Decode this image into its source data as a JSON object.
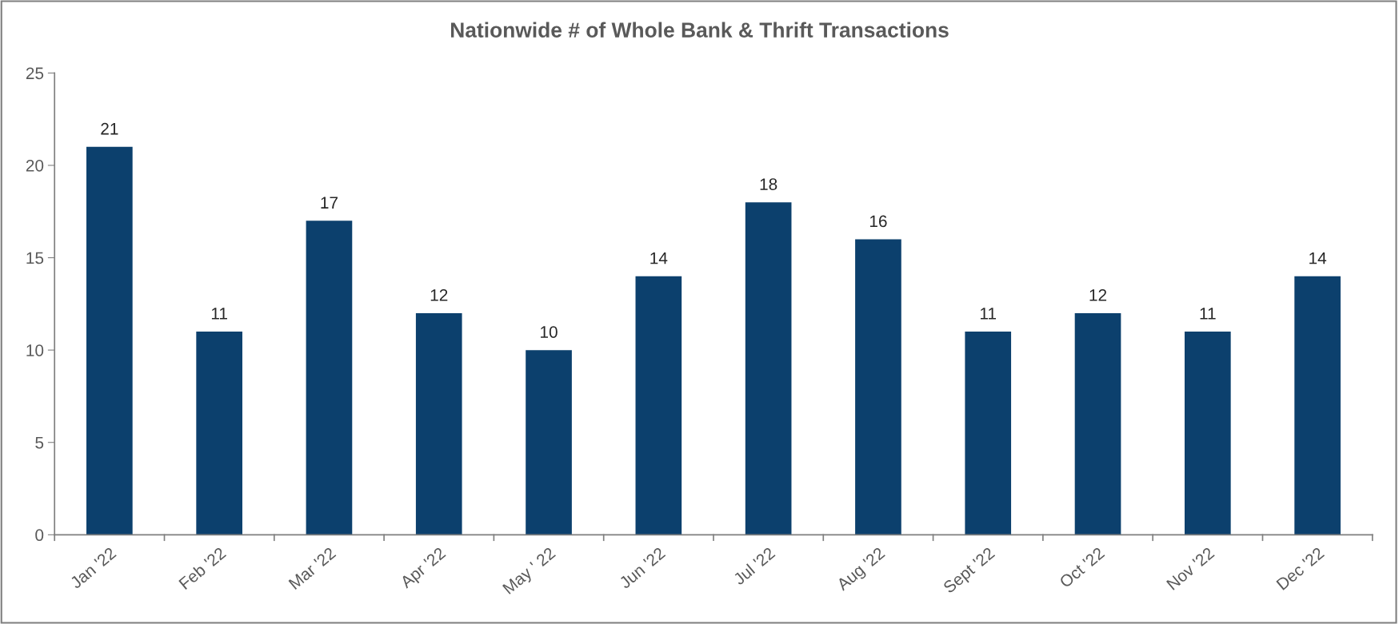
{
  "chart_data": {
    "type": "bar",
    "title": "Nationwide # of Whole Bank & Thrift Transactions",
    "categories": [
      "Jan '22",
      "Feb '22",
      "Mar '22",
      "Apr '22",
      "May ' 22",
      "Jun '22",
      "Jul '22",
      "Aug '22",
      "Sept '22",
      "Oct '22",
      "Nov '22",
      "Dec '22"
    ],
    "values": [
      21,
      11,
      17,
      12,
      10,
      14,
      18,
      16,
      11,
      12,
      11,
      14
    ],
    "color": "#0c406d",
    "ylim": [
      0,
      25
    ],
    "yticks": [
      0,
      5,
      10,
      15,
      20,
      25
    ],
    "grid": false,
    "data_labels": true
  }
}
